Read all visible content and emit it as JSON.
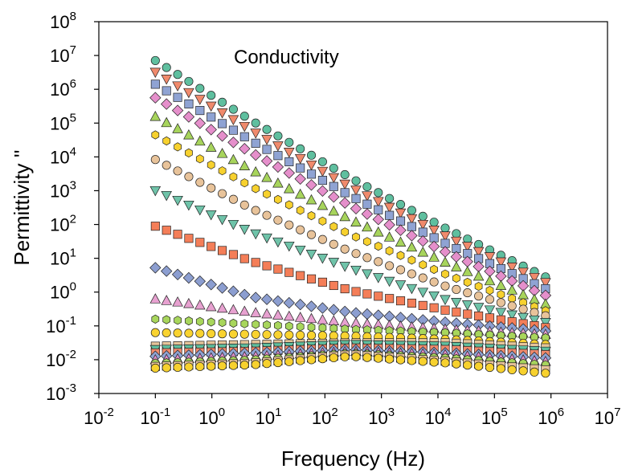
{
  "chart_data": {
    "type": "scatter",
    "title": "",
    "annotation": "Conductivity",
    "xlabel": "Frequency (Hz)",
    "ylabel": "Permittivity ''",
    "x_scale": "log",
    "y_scale": "log",
    "xlim": [
      0.01,
      10000000
    ],
    "ylim": [
      0.001,
      100000000
    ],
    "x_ticks": [
      {
        "base": "10",
        "exp": "-2"
      },
      {
        "base": "10",
        "exp": "-1"
      },
      {
        "base": "10",
        "exp": "0"
      },
      {
        "base": "10",
        "exp": "1"
      },
      {
        "base": "10",
        "exp": "2"
      },
      {
        "base": "10",
        "exp": "3"
      },
      {
        "base": "10",
        "exp": "4"
      },
      {
        "base": "10",
        "exp": "5"
      },
      {
        "base": "10",
        "exp": "6"
      },
      {
        "base": "10",
        "exp": "7"
      }
    ],
    "y_ticks": [
      {
        "base": "10",
        "exp": "-3"
      },
      {
        "base": "10",
        "exp": "-2"
      },
      {
        "base": "10",
        "exp": "-1"
      },
      {
        "base": "10",
        "exp": "0"
      },
      {
        "base": "10",
        "exp": "1"
      },
      {
        "base": "10",
        "exp": "2"
      },
      {
        "base": "10",
        "exp": "3"
      },
      {
        "base": "10",
        "exp": "4"
      },
      {
        "base": "10",
        "exp": "5"
      },
      {
        "base": "10",
        "exp": "6"
      },
      {
        "base": "10",
        "exp": "7"
      },
      {
        "base": "10",
        "exp": "8"
      }
    ],
    "grid": false,
    "legend": "none",
    "freq_range_hz": [
      0.1,
      800000
    ],
    "points_per_decade": 5,
    "series": [
      {
        "marker": "circle",
        "color": "#5fbf9f",
        "log_y": [
          6.85,
          5.05,
          3.38,
          1.85,
          0.45
        ]
      },
      {
        "marker": "tri-down",
        "color": "#f08a6c",
        "log_y": [
          6.5,
          4.75,
          3.1,
          1.62,
          0.28
        ]
      },
      {
        "marker": "square",
        "color": "#8fa3d3",
        "log_y": [
          6.15,
          4.45,
          2.85,
          1.4,
          0.1
        ]
      },
      {
        "marker": "diamond",
        "color": "#e58fcb",
        "log_y": [
          5.75,
          4.1,
          2.55,
          1.15,
          -0.1
        ]
      },
      {
        "marker": "tri-up",
        "color": "#a7d45c",
        "log_y": [
          5.2,
          3.6,
          2.15,
          0.85,
          -0.35
        ]
      },
      {
        "marker": "hexagon",
        "color": "#f7d12e",
        "log_y": [
          4.65,
          3.1,
          1.7,
          0.5,
          -0.55
        ]
      },
      {
        "marker": "circle",
        "color": "#e8c39a",
        "log_y": [
          3.92,
          2.45,
          1.2,
          0.15,
          -0.7
        ]
      },
      {
        "marker": "tri-down",
        "color": "#6fc3a9",
        "log_y": [
          3.0,
          1.75,
          0.7,
          -0.25,
          -0.9
        ]
      },
      {
        "marker": "square",
        "color": "#f47e58",
        "log_y": [
          1.95,
          0.9,
          0.05,
          -0.55,
          -1.05
        ]
      },
      {
        "marker": "diamond",
        "color": "#8c9ed0",
        "log_y": [
          0.72,
          -0.15,
          -0.6,
          -0.9,
          -1.15
        ]
      },
      {
        "marker": "tri-up",
        "color": "#e7a1d0",
        "log_y": [
          -0.2,
          -0.6,
          -0.9,
          -1.1,
          -1.25
        ]
      },
      {
        "marker": "hexagon",
        "color": "#a8d65c",
        "log_y": [
          -0.8,
          -0.95,
          -1.1,
          -1.2,
          -1.35
        ]
      },
      {
        "marker": "circle",
        "color": "#f9d330",
        "log_y": [
          -1.2,
          -1.25,
          -1.3,
          -1.4,
          -1.55
        ]
      },
      {
        "marker": "square",
        "color": "#e6c49a",
        "log_y": [
          -1.6,
          -1.55,
          -1.5,
          -1.5,
          -1.65
        ]
      },
      {
        "marker": "tri-down",
        "color": "#5fbf9f",
        "log_y": [
          -1.7,
          -1.65,
          -1.55,
          -1.6,
          -1.75
        ]
      },
      {
        "marker": "square",
        "color": "#f08a6c",
        "log_y": [
          -1.8,
          -1.75,
          -1.65,
          -1.7,
          -1.85
        ]
      },
      {
        "marker": "diamond",
        "color": "#8fa3d3",
        "log_y": [
          -1.9,
          -1.8,
          -1.7,
          -1.8,
          -1.95
        ]
      },
      {
        "marker": "tri-up",
        "color": "#e58fcb",
        "log_y": [
          -2.0,
          -1.9,
          -1.75,
          -1.85,
          -2.05
        ]
      },
      {
        "marker": "hexagon",
        "color": "#a7d45c",
        "log_y": [
          -2.1,
          -2.0,
          -1.8,
          -1.95,
          -2.15
        ]
      },
      {
        "marker": "square",
        "color": "#e8c39a",
        "log_y": [
          -2.2,
          -2.1,
          -1.85,
          -2.05,
          -2.3
        ]
      },
      {
        "marker": "circle",
        "color": "#f7d12e",
        "log_y": [
          -2.25,
          -2.15,
          -1.9,
          -2.1,
          -2.4
        ]
      }
    ]
  }
}
